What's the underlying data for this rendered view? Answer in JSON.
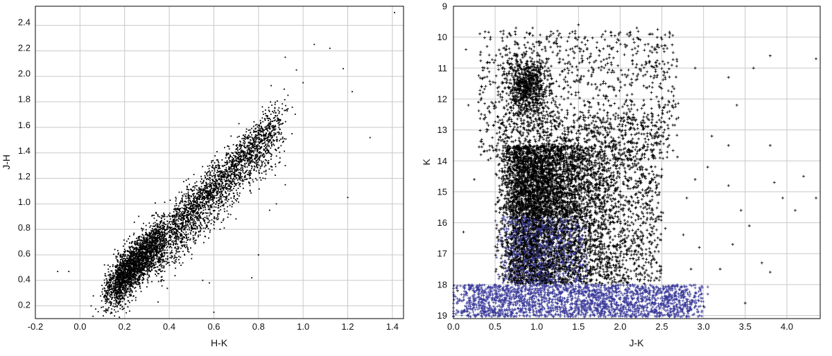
{
  "chart_data": [
    {
      "id": "left",
      "type": "scatter",
      "title": "",
      "xlabel": "H-K",
      "ylabel": "J-H",
      "xlim": [
        -0.2,
        1.45
      ],
      "ylim": [
        0.1,
        2.55
      ],
      "xticks": [
        "-0.2",
        "0.0",
        "0.2",
        "0.4",
        "0.6",
        "0.8",
        "1.0",
        "1.2",
        "1.4"
      ],
      "yticks": [
        "0.2",
        "0.4",
        "0.6",
        "0.8",
        "1.0",
        "1.2",
        "1.4",
        "1.6",
        "1.8",
        "2.0",
        "2.2",
        "2.4"
      ],
      "grid": true,
      "marker_color": "#000000",
      "series": [
        {
          "points": [
            [
              -0.1,
              0.47
            ],
            [
              -0.05,
              0.47
            ],
            [
              0.05,
              0.2
            ],
            [
              0.14,
              0.15
            ],
            [
              0.35,
              0.23
            ],
            [
              0.38,
              0.55
            ],
            [
              0.5,
              0.57
            ],
            [
              0.55,
              0.4
            ],
            [
              0.58,
              0.38
            ],
            [
              0.6,
              0.15
            ],
            [
              0.77,
              0.42
            ],
            [
              0.8,
              0.6
            ],
            [
              0.85,
              0.95
            ],
            [
              0.88,
              1.0
            ],
            [
              0.92,
              1.15
            ],
            [
              0.92,
              1.3
            ],
            [
              0.95,
              1.55
            ],
            [
              0.92,
              2.15
            ],
            [
              0.97,
              2.05
            ],
            [
              1.0,
              1.95
            ],
            [
              1.05,
              2.25
            ],
            [
              1.12,
              2.22
            ],
            [
              1.18,
              2.06
            ],
            [
              1.2,
              1.05
            ],
            [
              1.22,
              1.88
            ],
            [
              1.3,
              1.52
            ],
            [
              1.41,
              2.5
            ]
          ]
        }
      ]
    },
    {
      "id": "right",
      "type": "scatter",
      "title": "",
      "xlabel": "J-K",
      "ylabel": "K",
      "xlim": [
        0.0,
        4.4
      ],
      "ylim": [
        19.1,
        9.0
      ],
      "xticks": [
        "0.0",
        "0.5",
        "1.0",
        "1.5",
        "2.0",
        "2.5",
        "3.0",
        "3.5",
        "4.0"
      ],
      "yticks": [
        "9",
        "10",
        "11",
        "12",
        "13",
        "14",
        "15",
        "16",
        "17",
        "18",
        "19"
      ],
      "grid": true,
      "marker": "plus",
      "series": [
        {
          "color": "#000000",
          "points": [
            [
              0.05,
              18.2
            ],
            [
              0.12,
              16.3
            ],
            [
              0.25,
              14.6
            ],
            [
              0.15,
              10.4
            ],
            [
              0.3,
              12.1
            ],
            [
              0.18,
              12.2
            ],
            [
              0.6,
              9.8
            ],
            [
              0.75,
              9.7
            ],
            [
              0.95,
              9.7
            ],
            [
              1.5,
              9.6
            ],
            [
              2.2,
              9.7
            ],
            [
              2.45,
              9.75
            ],
            [
              2.9,
              11.0
            ],
            [
              3.3,
              11.3
            ],
            [
              3.6,
              11.0
            ],
            [
              3.8,
              10.6
            ],
            [
              4.35,
              10.7
            ],
            [
              3.4,
              12.2
            ],
            [
              3.1,
              13.2
            ],
            [
              3.3,
              13.5
            ],
            [
              3.8,
              13.5
            ],
            [
              3.85,
              14.7
            ],
            [
              3.3,
              14.8
            ],
            [
              2.9,
              14.6
            ],
            [
              3.45,
              15.6
            ],
            [
              3.55,
              16.1
            ],
            [
              3.95,
              15.2
            ],
            [
              4.2,
              14.5
            ],
            [
              4.35,
              15.2
            ],
            [
              4.1,
              15.6
            ],
            [
              3.7,
              17.3
            ],
            [
              3.8,
              17.6
            ],
            [
              3.5,
              18.6
            ],
            [
              3.2,
              17.5
            ],
            [
              3.0,
              18.7
            ],
            [
              2.95,
              16.8
            ],
            [
              2.85,
              17.5
            ],
            [
              3.35,
              16.7
            ],
            [
              2.8,
              15.2
            ],
            [
              3.05,
              14.2
            ]
          ]
        },
        {
          "color": "#3a3a9a",
          "points": [
            [
              0.05,
              18.9
            ],
            [
              0.1,
              19.0
            ],
            [
              0.2,
              18.7
            ],
            [
              0.05,
              18.6
            ],
            [
              2.8,
              18.5
            ],
            [
              2.9,
              18.6
            ],
            [
              0.3,
              18.4
            ],
            [
              2.7,
              18.3
            ]
          ]
        }
      ]
    }
  ]
}
